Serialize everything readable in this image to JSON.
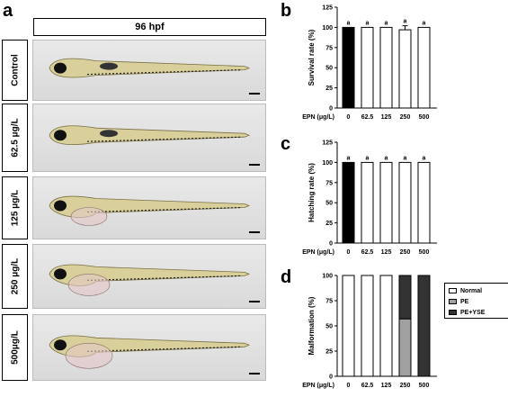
{
  "figure": {
    "panel_letters": {
      "a": "a",
      "b": "b",
      "c": "c",
      "d": "d"
    },
    "hpf_label": "96 hpf",
    "rows": [
      {
        "label": "Control"
      },
      {
        "label": "62.5 μg/L"
      },
      {
        "label": "125 μg/L"
      },
      {
        "label": "250 μg/L"
      },
      {
        "label": "500μg/L"
      }
    ]
  },
  "colors": {
    "black": "#000000",
    "white": "#ffffff",
    "grey": "#a0a0a0",
    "dark": "#333333"
  },
  "chart_data": [
    {
      "type": "bar",
      "ylabel": "Survival rate (%)",
      "xlabel": "EPN (μg/L)",
      "categories": [
        "0",
        "62.5",
        "125",
        "250",
        "500"
      ],
      "values": [
        100,
        100,
        100,
        97,
        100
      ],
      "errors": [
        0,
        0,
        0,
        5,
        0
      ],
      "fills": [
        "#000000",
        "#ffffff",
        "#ffffff",
        "#ffffff",
        "#ffffff"
      ],
      "annotations": [
        "a",
        "a",
        "a",
        "a",
        "a"
      ],
      "ylim": [
        0,
        125
      ],
      "yticks": [
        "0",
        "25",
        "50",
        "75",
        "100",
        "125"
      ]
    },
    {
      "type": "bar",
      "ylabel": "Hatching rate (%)",
      "xlabel": "EPN (μg/L)",
      "categories": [
        "0",
        "62.5",
        "125",
        "250",
        "500"
      ],
      "values": [
        100,
        100,
        100,
        100,
        100
      ],
      "errors": [
        0,
        0,
        0,
        0,
        0
      ],
      "fills": [
        "#000000",
        "#ffffff",
        "#ffffff",
        "#ffffff",
        "#ffffff"
      ],
      "annotations": [
        "a",
        "a",
        "a",
        "a",
        "a"
      ],
      "ylim": [
        0,
        125
      ],
      "yticks": [
        "0",
        "25",
        "50",
        "75",
        "100",
        "125"
      ]
    },
    {
      "type": "bar",
      "stacked": true,
      "ylabel": "Malformation (%)",
      "xlabel": "EPN (μg/L)",
      "categories": [
        "0",
        "62.5",
        "125",
        "250",
        "500"
      ],
      "series": [
        {
          "name": "Normal",
          "color": "#ffffff",
          "values": [
            100,
            100,
            100,
            0,
            0
          ]
        },
        {
          "name": "PE",
          "color": "#a0a0a0",
          "values": [
            0,
            0,
            0,
            57,
            0
          ]
        },
        {
          "name": "PE+YSE",
          "color": "#333333",
          "values": [
            0,
            0,
            0,
            43,
            100
          ]
        }
      ],
      "ylim": [
        0,
        100
      ],
      "yticks": [
        "0",
        "25",
        "50",
        "75",
        "100"
      ]
    }
  ]
}
